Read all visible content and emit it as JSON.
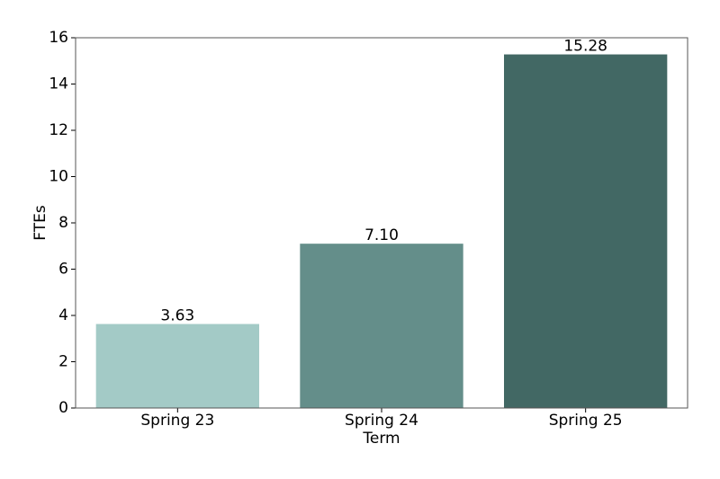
{
  "chart_data": {
    "type": "bar",
    "x_label": "Term",
    "y_label": "FTEs",
    "categories": [
      "Spring 23",
      "Spring 24",
      "Spring 25"
    ],
    "values": [
      3.63,
      7.1,
      15.28
    ],
    "value_labels": [
      "3.63",
      "7.10",
      "15.28"
    ],
    "colors": [
      "#a3cac6",
      "#648e8a",
      "#426864"
    ],
    "ylim": [
      0,
      16
    ],
    "yticks": [
      0,
      2,
      4,
      6,
      8,
      10,
      12,
      14,
      16
    ],
    "grid": false
  }
}
